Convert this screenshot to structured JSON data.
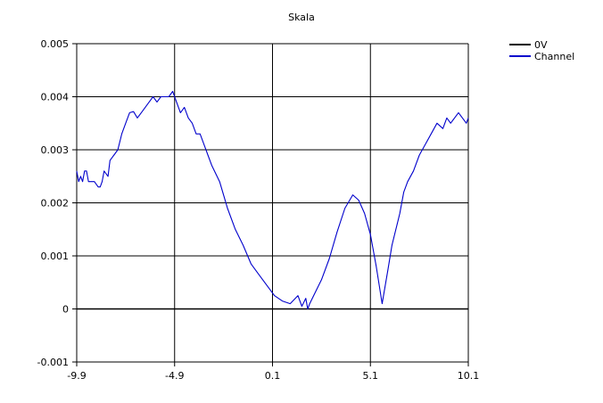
{
  "chart_data": {
    "type": "line",
    "title": "Skala",
    "xlabel": "",
    "ylabel": "",
    "xlim": [
      -9.9,
      10.1
    ],
    "ylim": [
      -0.001,
      0.005
    ],
    "x_ticks": [
      "-9.9",
      "-4.9",
      "0.1",
      "5.1",
      "10.1"
    ],
    "x_tick_values": [
      -9.9,
      -4.9,
      0.1,
      5.1,
      10.1
    ],
    "y_ticks": [
      "-0.001",
      "0",
      "0.001",
      "0.002",
      "0.003",
      "0.004",
      "0.005"
    ],
    "y_tick_values": [
      -0.001,
      0,
      0.001,
      0.002,
      0.003,
      0.004,
      0.005
    ],
    "grid": true,
    "legend_position": "top-right",
    "series": [
      {
        "name": "0V",
        "color": "#000000",
        "x": [
          -9.9,
          10.1
        ],
        "y": [
          0,
          0
        ]
      },
      {
        "name": "Channel",
        "color": "#0000cc",
        "x": [
          -9.9,
          -9.8,
          -9.7,
          -9.6,
          -9.5,
          -9.4,
          -9.3,
          -9.2,
          -9.0,
          -8.8,
          -8.7,
          -8.6,
          -8.5,
          -8.3,
          -8.2,
          -8.0,
          -7.8,
          -7.6,
          -7.4,
          -7.2,
          -7.0,
          -6.8,
          -6.6,
          -6.4,
          -6.2,
          -6.0,
          -5.8,
          -5.6,
          -5.4,
          -5.2,
          -5.0,
          -4.8,
          -4.6,
          -4.4,
          -4.2,
          -4.0,
          -3.8,
          -3.6,
          -3.4,
          -3.2,
          -3.0,
          -2.6,
          -2.2,
          -1.8,
          -1.4,
          -1.0,
          -0.6,
          -0.2,
          0.2,
          0.6,
          1.0,
          1.4,
          1.6,
          1.8,
          1.9,
          2.0,
          2.2,
          2.6,
          3.0,
          3.4,
          3.8,
          4.2,
          4.5,
          4.8,
          5.1,
          5.4,
          5.7,
          6.0,
          6.2,
          6.4,
          6.6,
          6.8,
          7.0,
          7.3,
          7.6,
          7.9,
          8.2,
          8.5,
          8.8,
          9.0,
          9.2,
          9.4,
          9.6,
          9.8,
          10.0,
          10.1
        ],
        "y": [
          0.0026,
          0.0024,
          0.0025,
          0.0024,
          0.0026,
          0.0026,
          0.0024,
          0.0024,
          0.0024,
          0.0023,
          0.0023,
          0.0024,
          0.0026,
          0.0025,
          0.0028,
          0.0029,
          0.003,
          0.0033,
          0.0035,
          0.0037,
          0.00372,
          0.0036,
          0.0037,
          0.0038,
          0.0039,
          0.004,
          0.0039,
          0.004,
          0.004,
          0.004,
          0.0041,
          0.0039,
          0.0037,
          0.0038,
          0.0036,
          0.0035,
          0.0033,
          0.0033,
          0.0031,
          0.0029,
          0.0027,
          0.0024,
          0.0019,
          0.0015,
          0.0012,
          0.00085,
          0.00065,
          0.00045,
          0.00025,
          0.00015,
          0.0001,
          0.00025,
          5e-05,
          0.0002,
          0.0,
          0.0001,
          0.00025,
          0.00055,
          0.00095,
          0.00145,
          0.0019,
          0.00215,
          0.00205,
          0.0018,
          0.0014,
          0.0008,
          0.0001,
          0.00075,
          0.0012,
          0.0015,
          0.0018,
          0.0022,
          0.0024,
          0.0026,
          0.0029,
          0.0031,
          0.0033,
          0.0035,
          0.0034,
          0.0036,
          0.0035,
          0.0036,
          0.0037,
          0.0036,
          0.0035,
          0.0036
        ]
      }
    ]
  }
}
